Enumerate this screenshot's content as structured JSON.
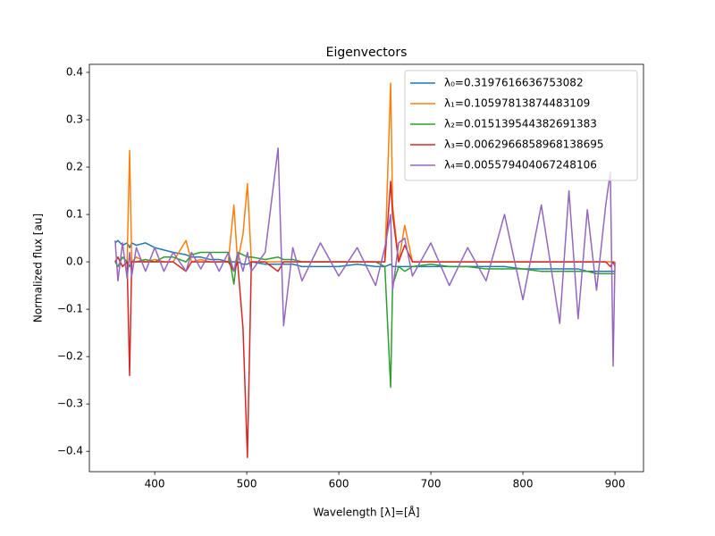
{
  "chart_data": {
    "type": "line",
    "title": "Eigenvectors",
    "x_label": "Wavelength [λ]=[Å]",
    "y_label": "Normalized flux [au]",
    "x": [
      357,
      360,
      365,
      370,
      372.7,
      375,
      380,
      390,
      400,
      410,
      420,
      434,
      440,
      450,
      460,
      470,
      480,
      486,
      490,
      495.9,
      500.7,
      505,
      520,
      534,
      540,
      550,
      560,
      580,
      600,
      620,
      640,
      650,
      656.3,
      658.4,
      665,
      671.6,
      680,
      700,
      720,
      740,
      760,
      780,
      800,
      820,
      840,
      850,
      860,
      870,
      880,
      890,
      895,
      898,
      900
    ],
    "series": [
      {
        "name": "λ₀=0.3197616636753082",
        "color": "#1f77b4",
        "values": [
          0.04,
          0.045,
          0.035,
          0.04,
          0.03,
          0.04,
          0.035,
          0.04,
          0.03,
          0.025,
          0.02,
          0.015,
          0.01,
          0.01,
          0.005,
          0.005,
          0.0,
          0.0,
          0.0,
          -0.005,
          -0.005,
          0.0,
          -0.005,
          -0.005,
          -0.005,
          -0.005,
          -0.01,
          -0.01,
          -0.01,
          -0.005,
          -0.01,
          -0.01,
          -0.005,
          -0.01,
          -0.01,
          -0.01,
          -0.01,
          -0.01,
          -0.01,
          -0.01,
          -0.01,
          -0.01,
          -0.015,
          -0.015,
          -0.015,
          -0.015,
          -0.015,
          -0.02,
          -0.02,
          -0.02,
          -0.02,
          -0.02,
          -0.02
        ]
      },
      {
        "name": "λ₁=0.10597813874483109",
        "color": "#ff7f0e",
        "values": [
          0.0,
          0.01,
          -0.01,
          0.0,
          0.235,
          0.0,
          0.01,
          0.0,
          0.005,
          0.0,
          0.0,
          0.045,
          0.0,
          0.005,
          0.0,
          0.0,
          0.0,
          0.12,
          0.0,
          0.058,
          0.165,
          0.0,
          0.0,
          0.0,
          0.0,
          0.0,
          0.0,
          0.0,
          0.0,
          0.0,
          0.0,
          0.0,
          0.377,
          0.12,
          0.0,
          0.077,
          0.0,
          0.0,
          0.0,
          0.0,
          0.0,
          0.0,
          0.0,
          0.0,
          0.0,
          0.0,
          0.0,
          0.0,
          0.0,
          0.0,
          0.0,
          0.0,
          0.0
        ]
      },
      {
        "name": "λ₂=0.015139544382691383",
        "color": "#2ca02c",
        "values": [
          0.0,
          -0.01,
          0.01,
          0.0,
          -0.01,
          0.0,
          0.0,
          0.005,
          0.0,
          0.01,
          0.01,
          0.0,
          0.015,
          0.02,
          0.02,
          0.02,
          0.02,
          -0.047,
          0.02,
          0.015,
          0.01,
          0.01,
          0.005,
          0.01,
          0.005,
          0.005,
          0.0,
          0.0,
          0.0,
          0.0,
          0.0,
          -0.01,
          -0.265,
          -0.05,
          -0.01,
          -0.02,
          -0.01,
          -0.005,
          -0.01,
          -0.01,
          -0.015,
          -0.015,
          -0.015,
          -0.02,
          -0.02,
          -0.02,
          -0.02,
          -0.02,
          -0.025,
          -0.025,
          -0.025,
          -0.025,
          -0.025
        ]
      },
      {
        "name": "λ₃=0.0062966858968138695",
        "color": "#d62728",
        "values": [
          0.0,
          0.01,
          -0.01,
          0.0,
          -0.24,
          0.0,
          0.0,
          0.0,
          0.0,
          0.0,
          0.0,
          -0.02,
          0.0,
          0.0,
          0.0,
          0.0,
          0.0,
          -0.02,
          0.0,
          -0.14,
          -0.413,
          0.0,
          0.0,
          -0.02,
          0.0,
          0.0,
          0.0,
          0.0,
          0.0,
          0.0,
          0.0,
          0.0,
          0.17,
          0.1,
          0.0,
          0.035,
          0.0,
          0.0,
          0.0,
          0.0,
          0.0,
          0.0,
          0.0,
          0.0,
          0.0,
          0.0,
          0.0,
          0.0,
          0.0,
          0.0,
          -0.01,
          0.0,
          -0.01
        ]
      },
      {
        "name": "λ₄=0.005579404067248106",
        "color": "#9467bd",
        "values": [
          0.045,
          -0.04,
          0.04,
          -0.035,
          0.02,
          -0.03,
          0.03,
          -0.02,
          0.03,
          -0.02,
          0.02,
          -0.02,
          0.02,
          -0.015,
          0.02,
          -0.02,
          0.02,
          -0.02,
          0.02,
          -0.02,
          0.02,
          -0.02,
          0.02,
          0.24,
          -0.135,
          0.03,
          -0.04,
          0.04,
          -0.03,
          0.03,
          -0.05,
          0.03,
          0.1,
          -0.06,
          0.04,
          0.05,
          -0.03,
          0.04,
          -0.05,
          0.03,
          -0.04,
          0.1,
          -0.08,
          0.12,
          -0.13,
          0.15,
          -0.12,
          0.11,
          -0.06,
          0.12,
          0.19,
          -0.22,
          0.0
        ]
      }
    ],
    "xlim": [
      329,
      931
    ],
    "ylim": [
      -0.443,
      0.417
    ],
    "xticks": [
      400,
      500,
      600,
      700,
      800,
      900
    ],
    "yticks": [
      {
        "value": -0.4,
        "label": "−0.4"
      },
      {
        "value": -0.3,
        "label": "−0.3"
      },
      {
        "value": -0.2,
        "label": "−0.2"
      },
      {
        "value": -0.1,
        "label": "−0.1"
      },
      {
        "value": 0,
        "label": "0.0"
      },
      {
        "value": 0.1,
        "label": "0.1"
      },
      {
        "value": 0.2,
        "label": "0.2"
      },
      {
        "value": 0.3,
        "label": "0.3"
      },
      {
        "value": 0.4,
        "label": "0.4"
      }
    ],
    "legend": "upper right"
  }
}
